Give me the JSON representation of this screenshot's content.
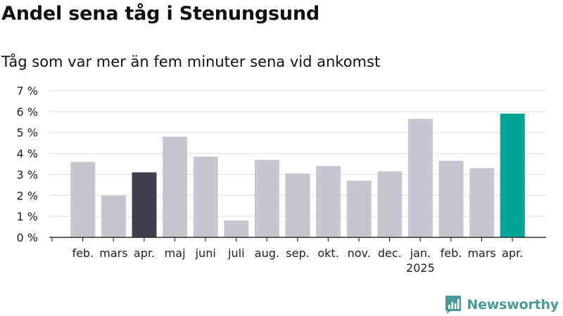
{
  "title": "Andel sena tåg i Stenungsund",
  "subtitle": "Tåg som var mer än fem minuter sena vid ankomst",
  "brand": {
    "name": "Newsworthy",
    "icon": "newsworthy-logo-icon"
  },
  "colors": {
    "default_bar": "#c7c6d1",
    "previous_year_bar": "#3f3f4e",
    "current_bar": "#00a496",
    "gridline": "#dddddd",
    "axis": "#333333",
    "brand": "#4a9a9a"
  },
  "chart_data": {
    "type": "bar",
    "categories": [
      "feb.",
      "mars",
      "apr.",
      "maj",
      "juni",
      "juli",
      "aug.",
      "sep.",
      "okt.",
      "nov.",
      "dec.",
      "jan.",
      "feb.",
      "mars",
      "apr."
    ],
    "year_labels": [
      "",
      "",
      "",
      "",
      "",
      "",
      "",
      "",
      "",
      "",
      "",
      "2025",
      "",
      "",
      ""
    ],
    "values": [
      3.6,
      2.0,
      3.1,
      4.8,
      3.85,
      0.8,
      3.7,
      3.05,
      3.4,
      2.7,
      3.15,
      5.65,
      3.65,
      3.3,
      5.9
    ],
    "highlight": [
      "default",
      "default",
      "previous_year",
      "default",
      "default",
      "default",
      "default",
      "default",
      "default",
      "default",
      "default",
      "default",
      "default",
      "default",
      "current"
    ],
    "ylim": [
      0,
      7
    ],
    "yticks": [
      0,
      1,
      2,
      3,
      4,
      5,
      6,
      7
    ],
    "ytick_labels": [
      "0 %",
      "1 %",
      "2 %",
      "3 %",
      "4 %",
      "5 %",
      "6 %",
      "7 %"
    ],
    "xlabel": "",
    "ylabel": "",
    "grid": true
  }
}
